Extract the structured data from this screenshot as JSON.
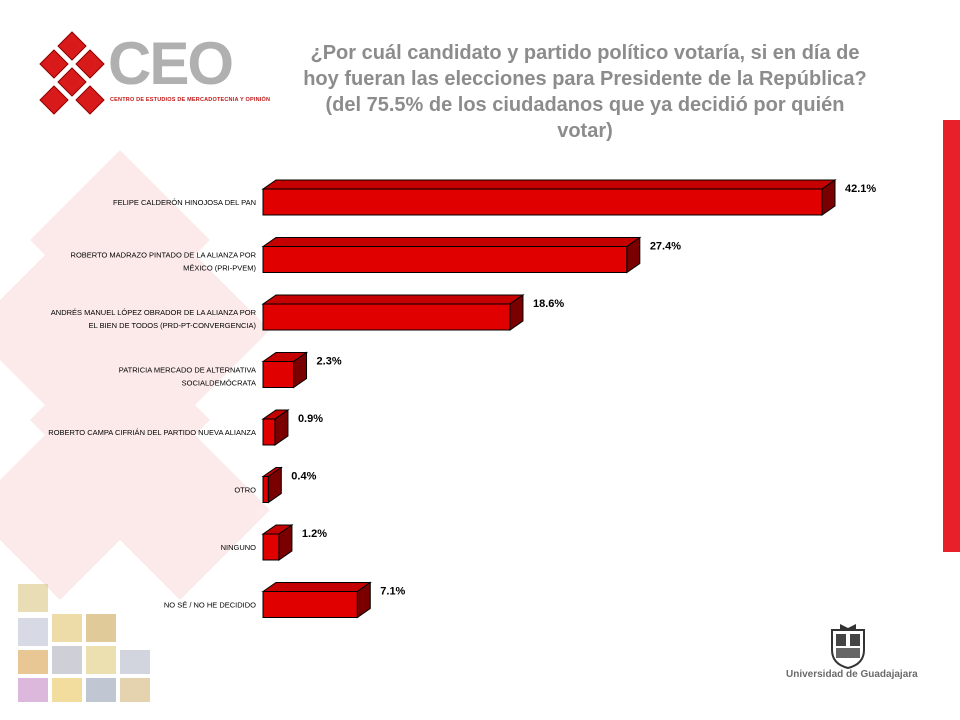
{
  "logo": {
    "wordmark": "CEO",
    "subtitle": "CENTRO DE ESTUDIOS DE MERCADOTECNIA Y OPINIÓN"
  },
  "title_lines": [
    "¿Por cuál candidato y partido político votaría, si en día de",
    "hoy fueran las elecciones para Presidente de la República?",
    "(del 75.5% de los ciudadanos que ya decidió por quién",
    "votar)"
  ],
  "footer": {
    "university": "Universidad de Guadajajara"
  },
  "colors": {
    "bar_front": "#e00000",
    "bar_top": "#c40000",
    "bar_side": "#7a0000",
    "title": "#8c8c8c",
    "accent": "#e8202a"
  },
  "chart_data": {
    "type": "bar",
    "orientation": "horizontal",
    "style": "3d",
    "unit": "%",
    "xlim": [
      0,
      42.1
    ],
    "grid": false,
    "legend": "none",
    "categories": [
      [
        "FELIPE CALDERÓN HINOJOSA DEL PAN"
      ],
      [
        "ROBERTO MADRAZO PINTADO DE LA ALIANZA POR",
        "MÉXICO (PRI-PVEM)"
      ],
      [
        "ANDRÉS MANUEL LÓPEZ OBRADOR DE LA ALIANZA POR",
        "EL BIEN DE TODOS (PRD-PT-CONVERGENCIA)"
      ],
      [
        "PATRICIA MERCADO DE ALTERNATIVA",
        "SOCIALDEMÓCRATA"
      ],
      [
        "ROBERTO CAMPA CIFRIÁN DEL PARTIDO NUEVA ALIANZA"
      ],
      [
        "OTRO"
      ],
      [
        "NINGUNO"
      ],
      [
        "NO SÉ / NO HE DECIDIDO"
      ]
    ],
    "values": [
      42.1,
      27.4,
      18.6,
      2.3,
      0.9,
      0.4,
      1.2,
      7.1
    ],
    "value_labels": [
      "42.1%",
      "27.4%",
      "18.6%",
      "2.3%",
      "0.9%",
      "0.4%",
      "1.2%",
      "7.1%"
    ]
  }
}
